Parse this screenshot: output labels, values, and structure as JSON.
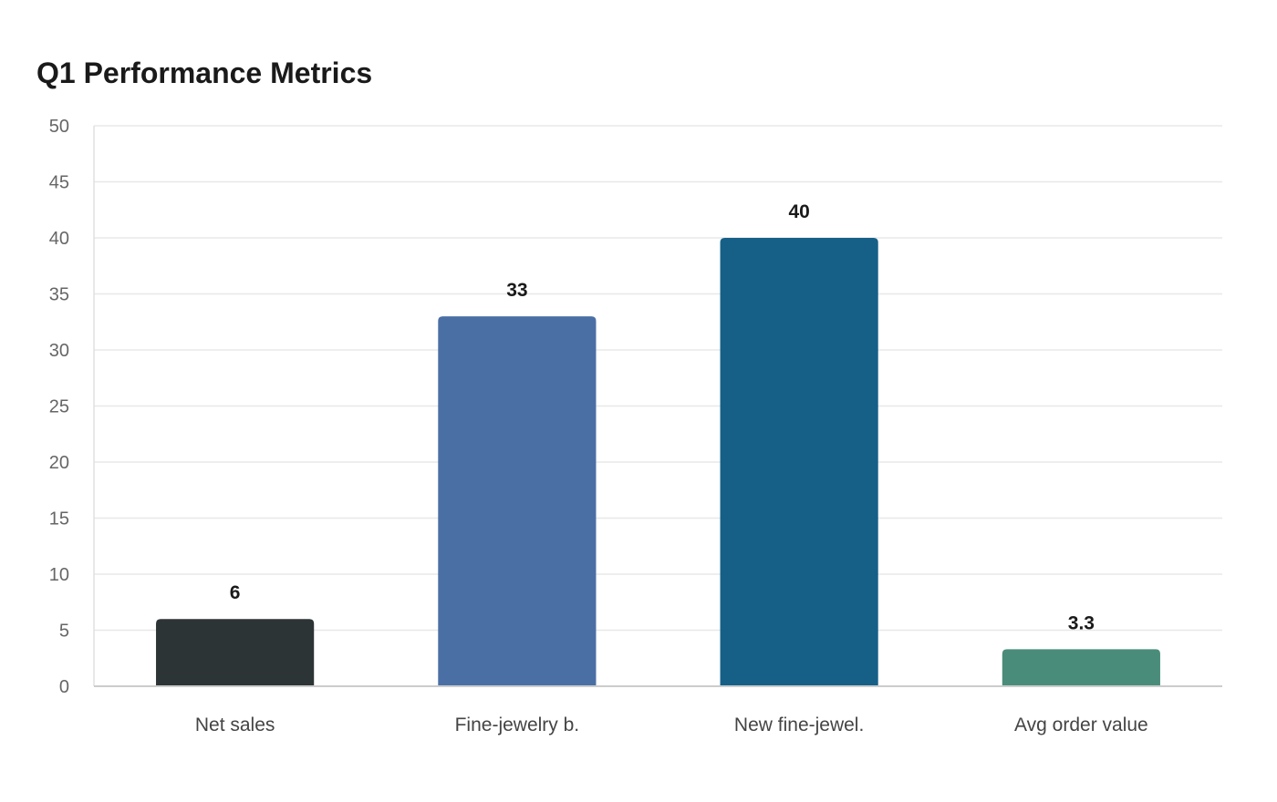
{
  "chart_data": {
    "type": "bar",
    "title": "Q1 Performance Metrics",
    "xlabel": "",
    "ylabel": "",
    "categories": [
      "Net sales",
      "Fine-jewelry b.",
      "New fine-jewel.",
      "Avg order value"
    ],
    "values": [
      6,
      33,
      40,
      3.3
    ],
    "value_labels": [
      "6",
      "33",
      "40",
      "3.3"
    ],
    "colors": [
      "#2d3436",
      "#4a6fa5",
      "#166088",
      "#4a8c7a"
    ],
    "ylim": [
      0,
      50
    ],
    "yticks": [
      0,
      5,
      10,
      15,
      20,
      25,
      30,
      35,
      40,
      45,
      50
    ],
    "grid": true,
    "legend": "none"
  }
}
